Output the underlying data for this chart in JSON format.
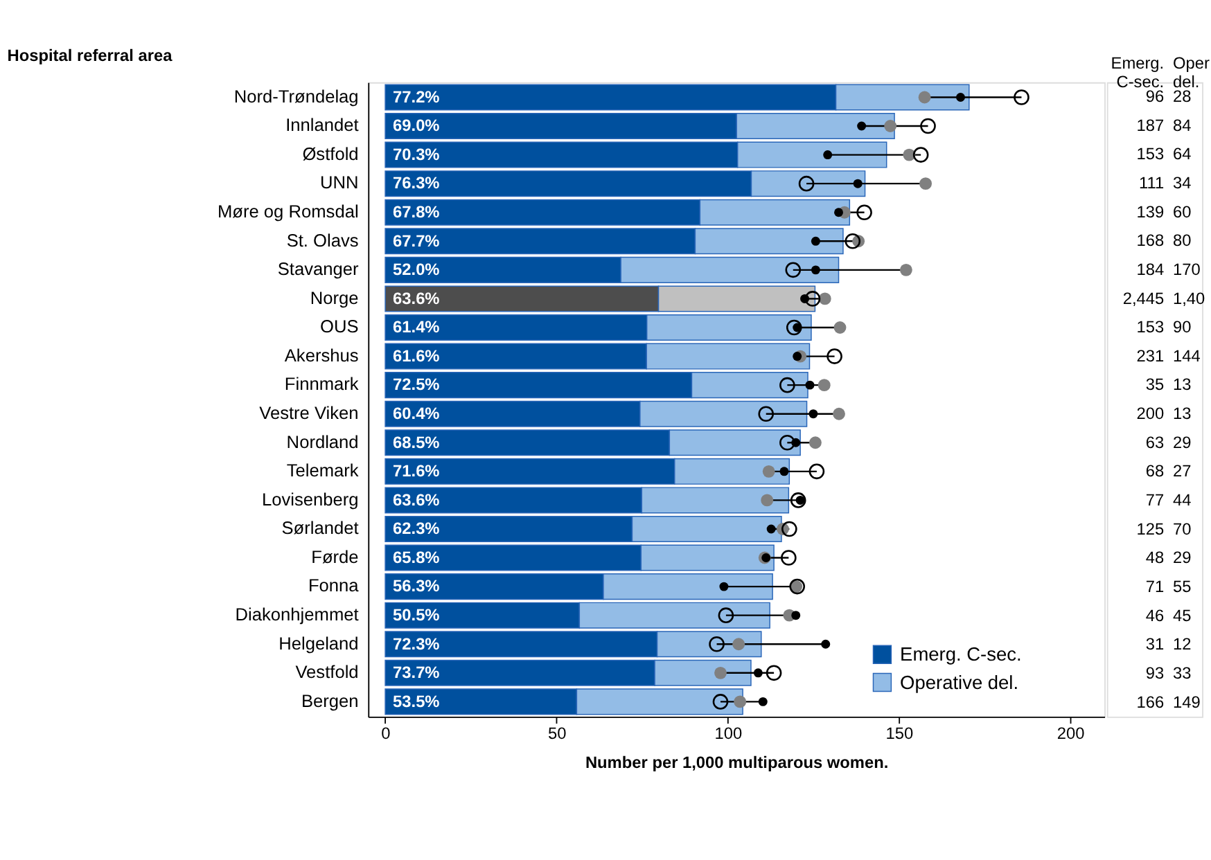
{
  "chart_data": {
    "type": "bar",
    "orientation": "horizontal",
    "stacked": true,
    "ylabel": "Hospital referral area",
    "xlabel": "Number per 1,000 multiparous women.",
    "legend": "bottom right",
    "grid": false,
    "xlim": [
      -5,
      210
    ],
    "xticks": [
      0,
      50,
      100,
      150,
      200
    ],
    "categories": [
      "Nord-Trøndelag",
      "Innlandet",
      "Østfold",
      "UNN",
      "Møre og Romsdal",
      "St. Olavs",
      "Stavanger",
      "Norge",
      "OUS",
      "Akershus",
      "Finnmark",
      "Vestre Viken",
      "Nordland",
      "Telemark",
      "Lovisenberg",
      "Sørlandet",
      "Førde",
      "Fonna",
      "Diakonhjemmet",
      "Helgeland",
      "Vestfold",
      "Bergen"
    ],
    "series": [
      {
        "name": "Emerg. C-sec.",
        "color": "#00509e",
        "colors": [
          "#00509e",
          "#00509e",
          "#00509e",
          "#00509e",
          "#00509e",
          "#00509e",
          "#00509e",
          "#4d4d4d",
          "#00509e",
          "#00509e",
          "#00509e",
          "#00509e",
          "#00509e",
          "#00509e",
          "#00509e",
          "#00509e",
          "#00509e",
          "#00509e",
          "#00509e",
          "#00509e",
          "#00509e",
          "#00509e"
        ],
        "values": [
          131.6,
          102.6,
          102.9,
          106.9,
          91.9,
          90.5,
          68.8,
          79.8,
          76.4,
          76.3,
          89.5,
          74.4,
          83.0,
          84.5,
          74.9,
          72.1,
          74.7,
          63.7,
          56.7,
          79.4,
          78.7,
          55.9
        ]
      },
      {
        "name": "Operative del.",
        "color": "#93bce6",
        "colors": [
          "#93bce6",
          "#93bce6",
          "#93bce6",
          "#93bce6",
          "#93bce6",
          "#93bce6",
          "#93bce6",
          "#c0c0c0",
          "#93bce6",
          "#93bce6",
          "#93bce6",
          "#93bce6",
          "#93bce6",
          "#93bce6",
          "#93bce6",
          "#93bce6",
          "#93bce6",
          "#93bce6",
          "#93bce6",
          "#93bce6",
          "#93bce6",
          "#93bce6"
        ],
        "values": [
          38.9,
          46.1,
          43.5,
          33.2,
          43.7,
          43.2,
          63.6,
          45.7,
          48.0,
          47.6,
          33.9,
          48.7,
          38.2,
          33.5,
          42.9,
          43.6,
          38.8,
          49.4,
          55.6,
          30.4,
          28.1,
          48.5
        ]
      },
      {
        "type": "scatter",
        "color": "#808080",
        "marker": "circle",
        "values": [
          157.5,
          147.5,
          153.0,
          157.8,
          134.1,
          138.2,
          152.1,
          128.4,
          132.8,
          121.2,
          128.2,
          132.5,
          125.6,
          112.0,
          111.5,
          116.1,
          110.8,
          120.0,
          118.0,
          103.2,
          97.9,
          103.6
        ]
      },
      {
        "type": "scatter",
        "color": "#000000",
        "marker": "circle",
        "values": [
          168.0,
          139.1,
          129.2,
          138.0,
          132.4,
          125.7,
          125.7,
          122.5,
          120.3,
          120.3,
          124.0,
          125.0,
          119.9,
          116.5,
          121.2,
          112.7,
          111.2,
          98.9,
          119.9,
          128.6,
          108.9,
          110.3
        ]
      },
      {
        "type": "scatter",
        "color": "#000000",
        "marker": "circle",
        "values": [
          185.8,
          158.5,
          156.4,
          123.0,
          139.9,
          136.5,
          119.1,
          124.8,
          119.4,
          131.2,
          117.4,
          111.2,
          117.4,
          126.0,
          120.6,
          118.0,
          117.8,
          120.3,
          99.5,
          96.8,
          113.5,
          97.9
        ]
      }
    ],
    "annotations": [
      "77.2%",
      "69.0%",
      "70.3%",
      "76.3%",
      "67.8%",
      "67.7%",
      "52.0%",
      "63.6%",
      "61.4%",
      "61.6%",
      "72.5%",
      "60.4%",
      "68.5%",
      "71.6%",
      "63.6%",
      "62.3%",
      "65.8%",
      "56.3%",
      "50.5%",
      "72.3%",
      "73.7%",
      "53.5%",
      "Emerg.\nC-sec.",
      "Oper\ndel.",
      "96",
      "28",
      "187",
      "84",
      "153",
      "64",
      "111",
      "34",
      "139",
      "60",
      "168",
      "80",
      "184",
      "170",
      "2,445",
      "1,40",
      "153",
      "90",
      "231",
      "144",
      "35",
      "13",
      "200",
      "13",
      "63",
      "29",
      "68",
      "27",
      "77",
      "44",
      "125",
      "70",
      "48",
      "29",
      "71",
      "55",
      "46",
      "45",
      "31",
      "12",
      "93",
      "33",
      "166",
      "149"
    ]
  }
}
